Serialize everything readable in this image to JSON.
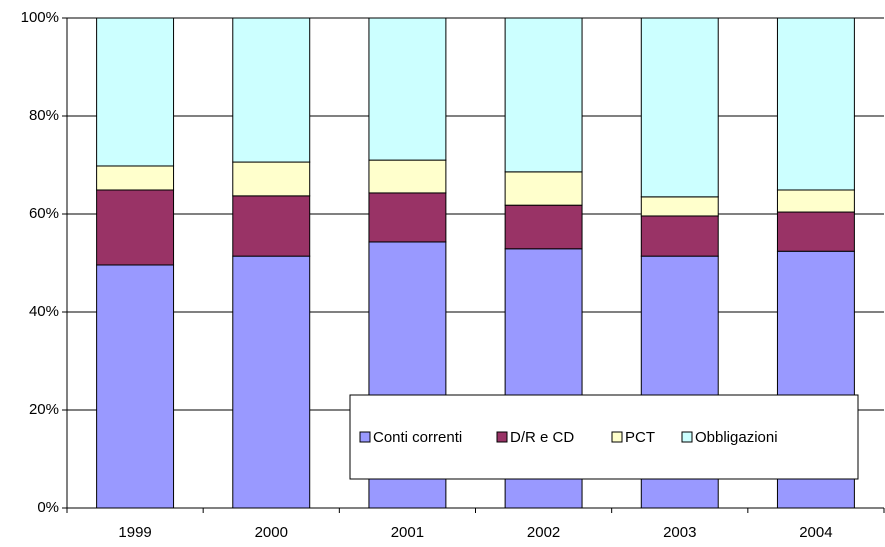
{
  "chart_data": {
    "type": "stacked_bar_100",
    "categories": [
      "1999",
      "2000",
      "2001",
      "2002",
      "2003",
      "2004"
    ],
    "series": [
      {
        "name": "Conti correnti",
        "color": "#9999ff",
        "values": [
          49.6,
          51.4,
          54.3,
          52.9,
          51.4,
          52.4
        ]
      },
      {
        "name": "D/R e CD",
        "color": "#993366",
        "values": [
          15.3,
          12.3,
          10.0,
          8.9,
          8.2,
          8.0
        ]
      },
      {
        "name": "PCT",
        "color": "#ffffcc",
        "values": [
          4.9,
          6.9,
          6.7,
          6.8,
          3.9,
          4.5
        ]
      },
      {
        "name": "Obbligazioni",
        "color": "#ccffff",
        "values": [
          30.2,
          29.4,
          29.0,
          31.4,
          36.5,
          35.1
        ]
      }
    ],
    "ylim": [
      0,
      100
    ],
    "yticks": [
      {
        "value": 0,
        "label": "0%"
      },
      {
        "value": 20,
        "label": "20%"
      },
      {
        "value": 40,
        "label": "40%"
      },
      {
        "value": 60,
        "label": "60%"
      },
      {
        "value": 80,
        "label": "80%"
      },
      {
        "value": 100,
        "label": "100%"
      }
    ],
    "grid": true,
    "legend": "lower right"
  }
}
